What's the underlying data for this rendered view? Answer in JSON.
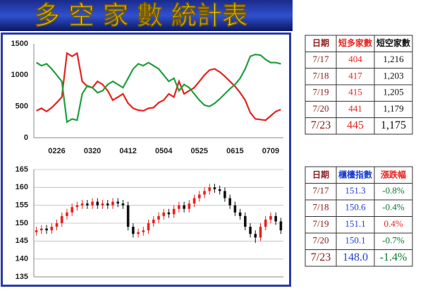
{
  "header": {
    "title": "多 空 家 數 統計表"
  },
  "chart_data": [
    {
      "type": "line",
      "ylim": [
        0,
        1500
      ],
      "yticks": [
        0,
        500,
        1000,
        1500
      ],
      "grid": false,
      "categories": [
        null,
        null,
        null,
        null,
        "0226",
        null,
        null,
        null,
        null,
        null,
        null,
        "0320",
        null,
        null,
        null,
        null,
        null,
        null,
        "0412",
        null,
        null,
        null,
        null,
        null,
        null,
        "0504",
        null,
        null,
        null,
        null,
        null,
        null,
        "0525",
        null,
        null,
        null,
        null,
        null,
        null,
        "0615",
        null,
        null,
        null,
        null,
        null,
        null,
        "0709",
        null,
        null
      ],
      "series": [
        {
          "color": "#e8231f",
          "values": [
            430,
            470,
            420,
            480,
            560,
            650,
            1350,
            1300,
            1350,
            900,
            820,
            800,
            900,
            850,
            750,
            600,
            650,
            700,
            550,
            470,
            440,
            430,
            470,
            480,
            560,
            600,
            700,
            650,
            900,
            700,
            750,
            800,
            900,
            1000,
            1080,
            1100,
            1050,
            980,
            900,
            820,
            720,
            600,
            400,
            300,
            290,
            280,
            350,
            420,
            450
          ]
        },
        {
          "color": "#1ea03c",
          "values": [
            1200,
            1150,
            1180,
            1100,
            1000,
            900,
            250,
            300,
            280,
            700,
            830,
            800,
            720,
            750,
            850,
            900,
            850,
            800,
            950,
            1100,
            1180,
            1150,
            1200,
            1150,
            1100,
            1000,
            900,
            950,
            750,
            850,
            800,
            700,
            600,
            520,
            500,
            550,
            620,
            700,
            780,
            850,
            950,
            1100,
            1300,
            1330,
            1320,
            1250,
            1200,
            1200,
            1180
          ]
        }
      ]
    },
    {
      "type": "candlestick",
      "ylim": [
        135,
        165
      ],
      "yticks": [
        135,
        140,
        145,
        150,
        155,
        160,
        165
      ],
      "grid": true,
      "up_color": "#e8231f",
      "down_color": "#111111",
      "open": [
        147.5,
        148,
        148.5,
        148,
        149,
        150,
        152,
        153,
        154.5,
        155,
        155.5,
        155,
        156,
        155,
        155.5,
        155,
        156,
        155.5,
        155,
        149,
        147,
        147.5,
        148,
        150,
        151,
        152,
        153,
        152.5,
        154,
        155,
        154,
        155.5,
        157,
        158,
        159,
        160,
        159.5,
        159,
        157,
        155,
        153,
        152,
        149,
        147,
        146,
        149,
        151,
        152,
        150.5
      ],
      "close": [
        148,
        148.5,
        148,
        149,
        150,
        152,
        153,
        154.5,
        155,
        155.5,
        155,
        156,
        155,
        155.5,
        155,
        156,
        155.5,
        155,
        149,
        147,
        147.5,
        148,
        150,
        151,
        152,
        153,
        152.5,
        154,
        155,
        154,
        155.5,
        157,
        158,
        159,
        160,
        159.5,
        159,
        157,
        155,
        153,
        152,
        149,
        147,
        146,
        149,
        151,
        152,
        150.5,
        148
      ],
      "high": [
        149,
        149.5,
        149.5,
        150,
        151,
        153,
        154,
        155.5,
        156,
        156.5,
        156.5,
        157,
        157,
        156.5,
        156.5,
        157,
        157,
        156.5,
        156,
        150,
        148.5,
        149,
        151,
        152,
        153,
        154,
        154,
        155,
        156,
        156,
        156.5,
        158,
        159,
        160,
        161,
        161,
        160.5,
        160,
        158,
        156,
        154,
        153,
        150,
        148,
        150,
        152,
        153,
        153,
        151.5
      ],
      "low": [
        146.5,
        147,
        147,
        147,
        148,
        149,
        151,
        152,
        153.5,
        154,
        154,
        154,
        154,
        154,
        154,
        154,
        154.5,
        154,
        148,
        146,
        146,
        146.5,
        147,
        149,
        150,
        151,
        151.5,
        151.5,
        153,
        153,
        153,
        154.5,
        156,
        157,
        158,
        158.5,
        158,
        156,
        154,
        152,
        151,
        148,
        146,
        144.5,
        145,
        148,
        150,
        149.5,
        147
      ]
    }
  ],
  "tables": [
    {
      "header": [
        "日期",
        "短多家數",
        "短空家數"
      ],
      "rows": [
        [
          "7/17",
          "404",
          "1,216"
        ],
        [
          "7/18",
          "417",
          "1,203"
        ],
        [
          "7/19",
          "415",
          "1,205"
        ],
        [
          "7/20",
          "441",
          "1,179"
        ],
        [
          "7/23",
          "445",
          "1,175"
        ]
      ]
    },
    {
      "header": [
        "日期",
        "櫃檯指數",
        "漲跌幅"
      ],
      "rows": [
        [
          "7/17",
          "151.3",
          "-0.8%"
        ],
        [
          "7/18",
          "150.6",
          "-0.4%"
        ],
        [
          "7/19",
          "151.1",
          "0.4%"
        ],
        [
          "7/20",
          "150.1",
          "-0.7%"
        ],
        [
          "7/23",
          "148.0",
          "-1.4%"
        ]
      ]
    }
  ]
}
